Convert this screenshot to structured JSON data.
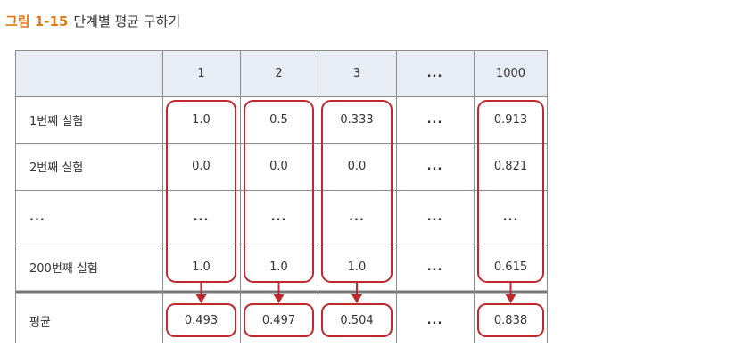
{
  "caption": {
    "number": "그림 1-15",
    "title": "단계별 평균 구하기"
  },
  "table": {
    "columns": [
      "",
      "1",
      "2",
      "3",
      "...",
      "1000"
    ],
    "rows": [
      [
        "1번째 실험",
        "1.0",
        "0.5",
        "0.333",
        "...",
        "0.913"
      ],
      [
        "2번째 실험",
        "0.0",
        "0.0",
        "0.0",
        "...",
        "0.821"
      ],
      [
        "...",
        "...",
        "...",
        "...",
        "...",
        "..."
      ],
      [
        "200번째 실험",
        "1.0",
        "1.0",
        "1.0",
        "...",
        "0.615"
      ]
    ],
    "average_row": [
      "평균",
      "0.493",
      "0.497",
      "0.504",
      "...",
      "0.838"
    ]
  },
  "colors": {
    "accent": "#e07b1a",
    "highlight": "#c0282f",
    "header_bg": "#e8edf5",
    "grid": "#8d8d8d"
  }
}
